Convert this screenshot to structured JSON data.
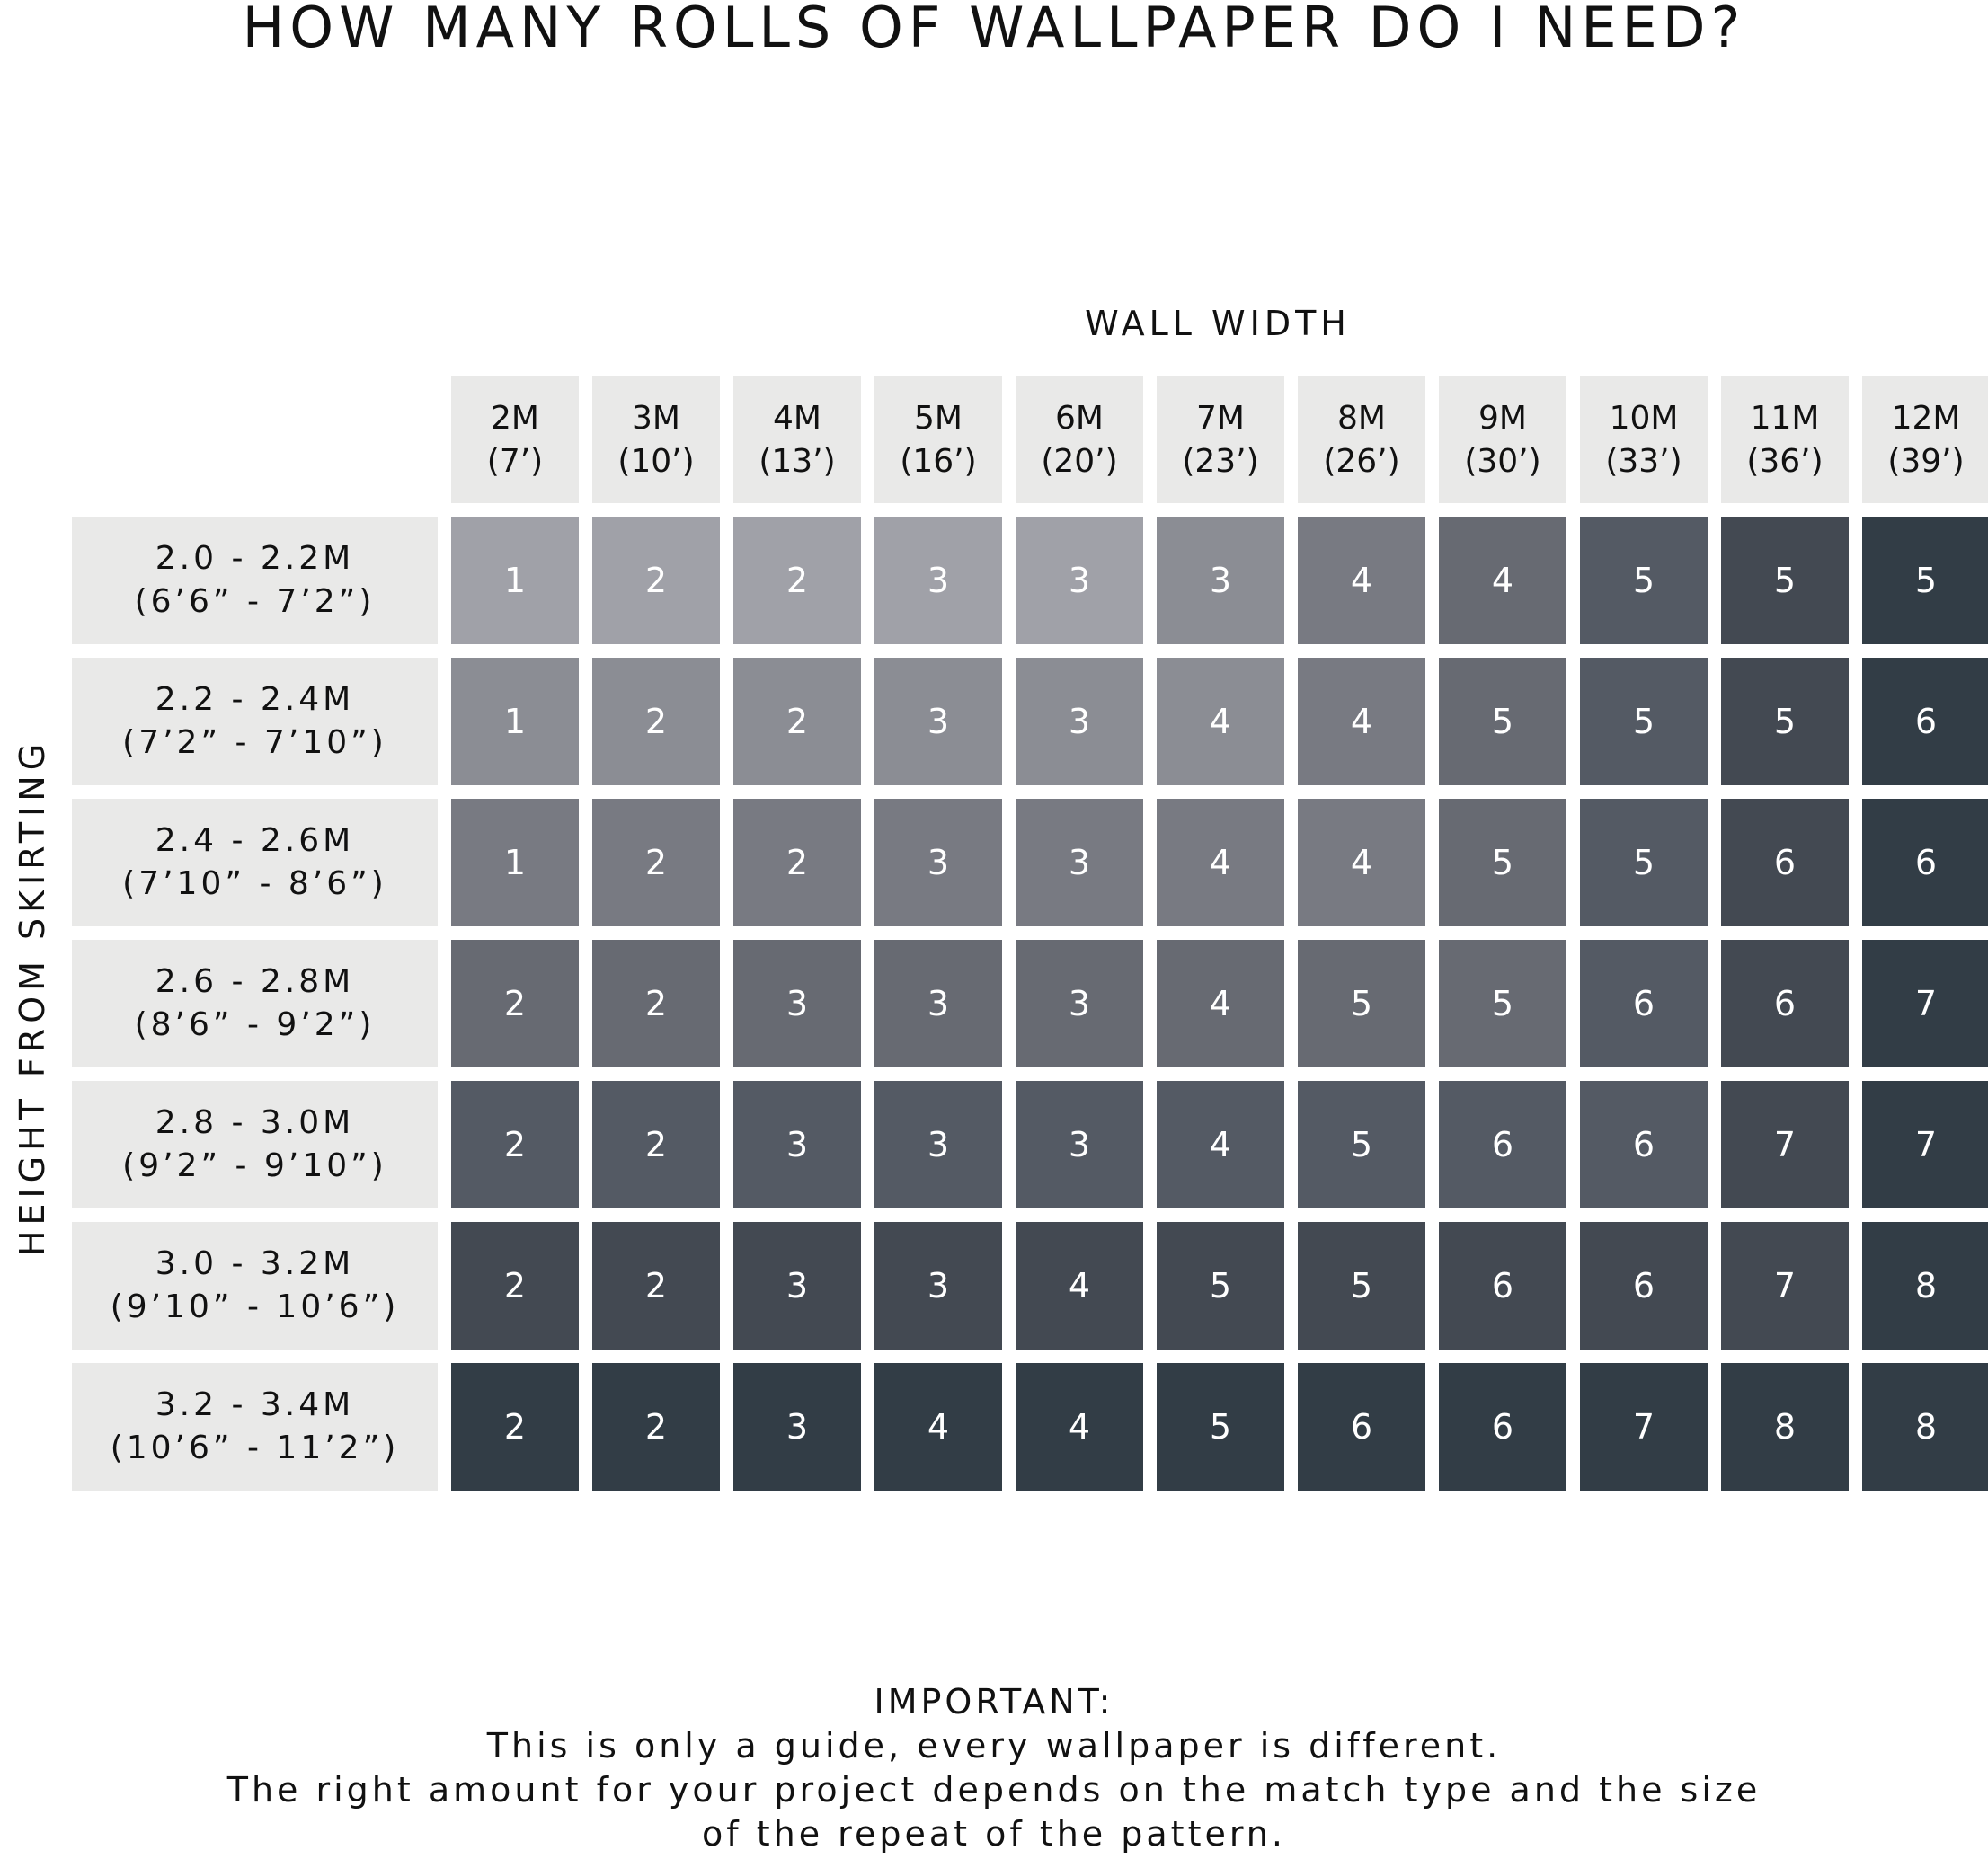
{
  "title": "HOW MANY ROLLS OF WALLPAPER DO I NEED?",
  "x_axis_label": "WALL WIDTH",
  "y_axis_label": "HEIGHT FROM SKIRTING",
  "columns": [
    {
      "m": "2M",
      "ft": "(7’)"
    },
    {
      "m": "3M",
      "ft": "(10’)"
    },
    {
      "m": "4M",
      "ft": "(13’)"
    },
    {
      "m": "5M",
      "ft": "(16’)"
    },
    {
      "m": "6M",
      "ft": "(20’)"
    },
    {
      "m": "7M",
      "ft": "(23’)"
    },
    {
      "m": "8M",
      "ft": "(26’)"
    },
    {
      "m": "9M",
      "ft": "(30’)"
    },
    {
      "m": "10M",
      "ft": "(33’)"
    },
    {
      "m": "11M",
      "ft": "(36’)"
    },
    {
      "m": "12M",
      "ft": "(39’)"
    }
  ],
  "rows": [
    {
      "m": "2.0 - 2.2M",
      "ft": "(6’6” - 7’2”)"
    },
    {
      "m": "2.2 - 2.4M",
      "ft": "(7’2” - 7’10”)"
    },
    {
      "m": "2.4 - 2.6M",
      "ft": "(7’10” - 8’6”)"
    },
    {
      "m": "2.6 - 2.8M",
      "ft": "(8’6” - 9’2”)"
    },
    {
      "m": "2.8 - 3.0M",
      "ft": "(9’2” - 9’10”)"
    },
    {
      "m": "3.0 - 3.2M",
      "ft": "(9’10” - 10’6”)"
    },
    {
      "m": "3.2 - 3.4M",
      "ft": "(10’6” - 11’2”)"
    }
  ],
  "colors": {
    "header_bg": "#e9e9e8",
    "shades": [
      "#a0a1a8",
      "#8b8d94",
      "#787a82",
      "#676a72",
      "#545a64",
      "#434952",
      "#323d46"
    ],
    "row_shade_level": [
      0,
      1,
      2,
      3,
      4,
      5,
      6
    ],
    "col_shade_level": [
      0,
      0,
      0,
      0,
      0,
      1,
      2,
      3,
      4,
      5,
      6
    ]
  },
  "note": {
    "heading": "IMPORTANT:",
    "line1": "This is only a guide, every wallpaper is different.",
    "line2": "The right amount for your project depends on the match type and the size",
    "line3": "of the repeat of the pattern."
  },
  "chart_data": {
    "type": "heatmap",
    "title": "HOW MANY ROLLS OF WALLPAPER DO I NEED?",
    "xlabel": "WALL WIDTH",
    "ylabel": "HEIGHT FROM SKIRTING",
    "x": [
      "2M (7’)",
      "3M (10’)",
      "4M (13’)",
      "5M (16’)",
      "6M (20’)",
      "7M (23’)",
      "8M (26’)",
      "9M (30’)",
      "10M (33’)",
      "11M (36’)",
      "12M (39’)"
    ],
    "y": [
      "2.0 - 2.2M (6’6” - 7’2”)",
      "2.2 - 2.4M (7’2” - 7’10”)",
      "2.4 - 2.6M (7’10” - 8’6”)",
      "2.6 - 2.8M (8’6” - 9’2”)",
      "2.8 - 3.0M (9’2” - 9’10”)",
      "3.0 - 3.2M (9’10” - 10’6”)",
      "3.2 - 3.4M (10’6” - 11’2”)"
    ],
    "values": [
      [
        1,
        2,
        2,
        3,
        3,
        3,
        4,
        4,
        5,
        5,
        5
      ],
      [
        1,
        2,
        2,
        3,
        3,
        4,
        4,
        5,
        5,
        5,
        6
      ],
      [
        1,
        2,
        2,
        3,
        3,
        4,
        4,
        5,
        5,
        6,
        6
      ],
      [
        2,
        2,
        3,
        3,
        3,
        4,
        5,
        5,
        6,
        6,
        7
      ],
      [
        2,
        2,
        3,
        3,
        3,
        4,
        5,
        6,
        6,
        7,
        7
      ],
      [
        2,
        2,
        3,
        3,
        4,
        5,
        5,
        6,
        6,
        7,
        8
      ],
      [
        2,
        2,
        3,
        4,
        4,
        5,
        6,
        6,
        7,
        8,
        8
      ]
    ],
    "annotations": [
      "IMPORTANT: This is only a guide, every wallpaper is different. The right amount for your project depends on the match type and the size of the repeat of the pattern."
    ]
  }
}
